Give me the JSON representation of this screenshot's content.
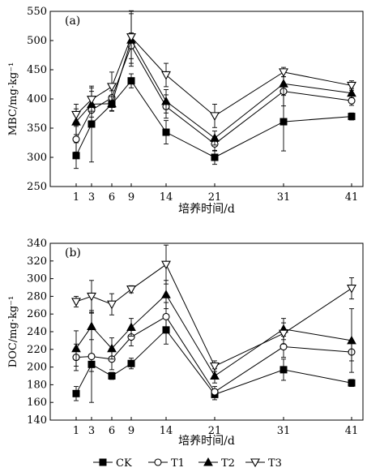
{
  "chart_data": [
    {
      "type": "line",
      "panel_label": "(a)",
      "xlabel": "培养时间/d",
      "ylabel": "MBC/mg·kg⁻¹",
      "x": [
        1,
        3,
        6,
        9,
        14,
        21,
        31,
        41
      ],
      "x_ticks": [
        "1",
        "3",
        "6",
        "9",
        "14",
        "21",
        "31",
        "41"
      ],
      "ylim": [
        250,
        550
      ],
      "y_ticks": [
        "250",
        "300",
        "350",
        "400",
        "450",
        "500",
        "550"
      ],
      "series": [
        {
          "name": "CK",
          "marker": "square-filled",
          "values": [
            303,
            357,
            391,
            431,
            343,
            300,
            361,
            370
          ],
          "err": [
            22,
            65,
            12,
            12,
            20,
            12,
            50,
            6
          ]
        },
        {
          "name": "T1",
          "marker": "circle-open",
          "values": [
            331,
            381,
            402,
            491,
            387,
            323,
            413,
            397
          ],
          "err": [
            22,
            22,
            12,
            22,
            20,
            12,
            25,
            8
          ]
        },
        {
          "name": "T2",
          "marker": "triangle-filled",
          "values": [
            361,
            391,
            392,
            501,
            396,
            333,
            426,
            410
          ],
          "err": [
            22,
            22,
            12,
            45,
            20,
            12,
            20,
            8
          ]
        },
        {
          "name": "T3",
          "marker": "triangle-down-open",
          "values": [
            373,
            399,
            421,
            506,
            441,
            371,
            446,
            423
          ],
          "err": [
            18,
            20,
            25,
            45,
            20,
            20,
            8,
            8
          ]
        }
      ]
    },
    {
      "type": "line",
      "panel_label": "(b)",
      "xlabel": "培养时间/d",
      "ylabel": "DOC/mg·kg⁻¹",
      "x": [
        1,
        3,
        6,
        9,
        14,
        21,
        31,
        41
      ],
      "x_ticks": [
        "1",
        "3",
        "6",
        "9",
        "14",
        "21",
        "31",
        "41"
      ],
      "ylim": [
        140,
        340
      ],
      "y_ticks": [
        "140",
        "160",
        "180",
        "200",
        "220",
        "240",
        "260",
        "280",
        "300",
        "320",
        "340"
      ],
      "series": [
        {
          "name": "CK",
          "marker": "square-filled",
          "values": [
            170,
            203,
            190,
            204,
            242,
            169,
            197,
            182
          ],
          "err": [
            8,
            8,
            4,
            6,
            16,
            6,
            12,
            4
          ]
        },
        {
          "name": "T1",
          "marker": "circle-open",
          "values": [
            211,
            212,
            209,
            234,
            257,
            172,
            223,
            217
          ],
          "err": [
            15,
            52,
            12,
            10,
            16,
            6,
            12,
            10
          ]
        },
        {
          "name": "T2",
          "marker": "triangle-filled",
          "values": [
            221,
            246,
            221,
            245,
            282,
            190,
            243,
            230
          ],
          "err": [
            20,
            15,
            12,
            10,
            16,
            8,
            12,
            36
          ]
        },
        {
          "name": "T3",
          "marker": "triangle-down-open",
          "values": [
            274,
            280,
            271,
            288,
            316,
            201,
            238,
            289
          ],
          "err": [
            6,
            18,
            12,
            4,
            22,
            6,
            12,
            12
          ]
        }
      ]
    }
  ],
  "legend": {
    "placement": "bottom",
    "entries": [
      {
        "name": "CK",
        "marker": "square-filled"
      },
      {
        "name": "T1",
        "marker": "circle-open"
      },
      {
        "name": "T2",
        "marker": "triangle-filled"
      },
      {
        "name": "T3",
        "marker": "triangle-down-open"
      }
    ]
  }
}
